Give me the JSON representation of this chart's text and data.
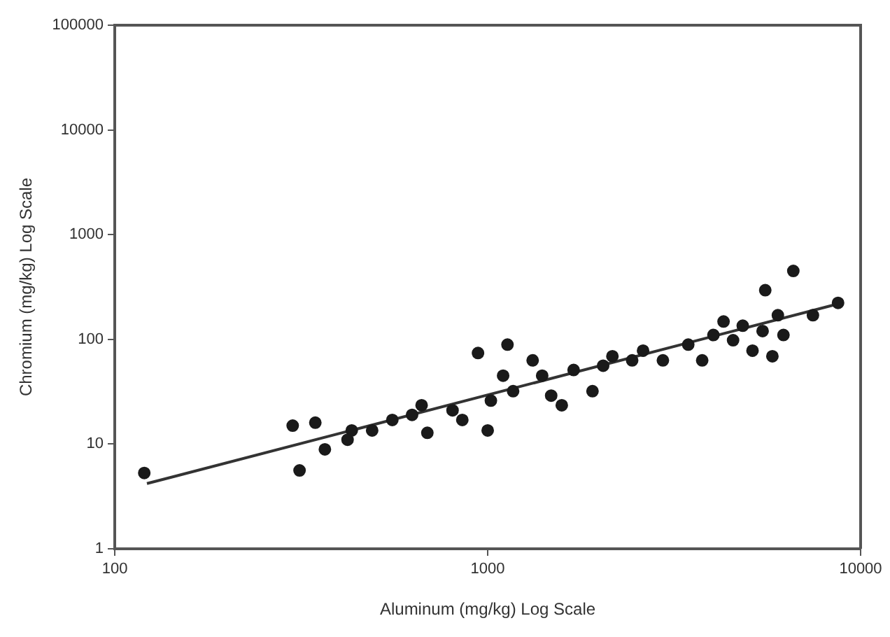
{
  "chart_data": {
    "type": "scatter",
    "xlabel": "Aluminum (mg/kg) Log Scale",
    "ylabel": "Chromium (mg/kg) Log Scale",
    "log": "xy",
    "xlim": [
      100,
      10000
    ],
    "xticks": [
      100,
      1000,
      10000
    ],
    "ylim": [
      1,
      100000
    ],
    "yticks": [
      1,
      10,
      100,
      1000,
      10000,
      100000
    ],
    "grid": false,
    "legend": false,
    "marker": "circle",
    "series": [
      {
        "color": "#1a1a1a",
        "x": [
          120,
          313,
          300,
          345,
          366,
          432,
          555,
          665,
          689,
          942,
          1130,
          1000,
          1100,
          1320,
          1580,
          1910,
          2160,
          2950,
          4030,
          5460,
          5550,
          6600,
          5800,
          8700,
          421,
          490,
          627,
          805,
          855,
          1020,
          1170,
          1400,
          1480,
          1700,
          2040,
          2440,
          2610,
          3450,
          3760,
          4550,
          4830,
          5130,
          6000,
          6210,
          7450,
          4290
        ],
        "values": [
          5.3,
          5.6,
          15,
          16,
          8.9,
          13.5,
          17,
          23.5,
          12.8,
          74,
          89,
          13.5,
          45,
          63,
          23.5,
          32,
          69,
          63,
          110,
          120,
          295,
          450,
          69,
          223,
          11,
          13.5,
          19,
          21,
          17,
          26,
          32,
          45,
          29,
          51,
          56,
          63,
          78,
          89,
          63,
          98,
          135,
          78,
          170,
          110,
          170,
          148
        ]
      },
      {
        "type": "line",
        "color": "#333333",
        "marker": "none",
        "x": [
          122,
          8900
        ],
        "values": [
          4.2,
          223
        ]
      }
    ]
  }
}
